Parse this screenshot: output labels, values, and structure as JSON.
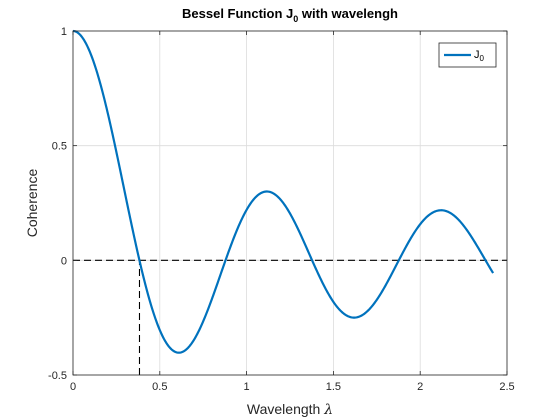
{
  "chart_data": {
    "type": "line",
    "title": {
      "main": "Bessel Function J",
      "subscript": "0",
      "rest": " with wavelengh"
    },
    "xlabel": {
      "text": "Wavelength ",
      "symbol": "λ"
    },
    "ylabel": "Coherence",
    "xlim": [
      0,
      2.5
    ],
    "ylim": [
      -0.5,
      1
    ],
    "x_ticks": [
      0,
      0.5,
      1,
      1.5,
      2,
      2.5
    ],
    "x_tick_labels": [
      "0",
      "0.5",
      "1",
      "1.5",
      "2",
      "2.5"
    ],
    "y_ticks": [
      -0.5,
      0,
      0.5,
      1
    ],
    "y_tick_labels": [
      "-0.5",
      "0",
      "0.5",
      "1"
    ],
    "grid": true,
    "legend_position": "top-right",
    "series": [
      {
        "name": "J",
        "name_subscript": "0",
        "color": "#0072BD",
        "function": "J0(2*pi*x)",
        "x_range": [
          0,
          2.42
        ],
        "sample_x": [
          0,
          0.1,
          0.2,
          0.3,
          0.383,
          0.5,
          0.61,
          0.7,
          0.8,
          0.878,
          1.0,
          1.12,
          1.2,
          1.3,
          1.378,
          1.5,
          1.62,
          1.7,
          1.8,
          1.878,
          2.0,
          2.12,
          2.2,
          2.3,
          2.42
        ],
        "sample_y": [
          1,
          0.904,
          0.644,
          0.299,
          0,
          -0.304,
          -0.403,
          -0.357,
          -0.176,
          0,
          0.22,
          0.3,
          0.274,
          0.152,
          0,
          -0.187,
          -0.249,
          -0.219,
          -0.098,
          0,
          0.16,
          0.219,
          0.2,
          0.1,
          -0.047
        ]
      }
    ],
    "reference_lines": [
      {
        "orientation": "horizontal",
        "y": 0,
        "x_range": [
          0,
          2.5
        ],
        "style": "dashed",
        "color": "#000000"
      },
      {
        "orientation": "vertical",
        "x": 0.383,
        "y_range": [
          -0.5,
          0
        ],
        "style": "dashed",
        "color": "#000000"
      }
    ]
  }
}
